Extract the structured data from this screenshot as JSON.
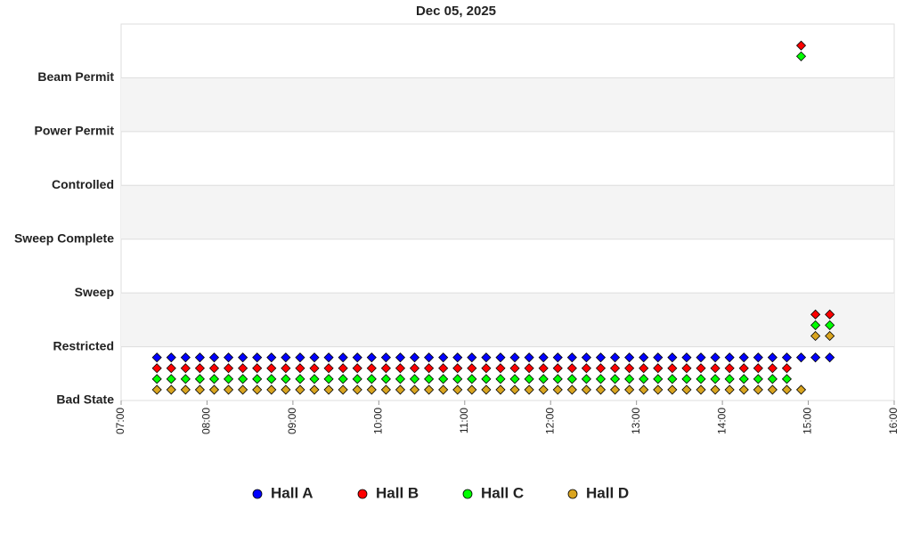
{
  "chart_data": {
    "type": "scatter",
    "title": "Dec 05, 2025",
    "x": [
      "07:25",
      "07:35",
      "07:45",
      "07:55",
      "08:05",
      "08:15",
      "08:25",
      "08:35",
      "08:45",
      "08:55",
      "09:05",
      "09:15",
      "09:25",
      "09:35",
      "09:45",
      "09:55",
      "10:05",
      "10:15",
      "10:25",
      "10:35",
      "10:45",
      "10:55",
      "11:05",
      "11:15",
      "11:25",
      "11:35",
      "11:45",
      "11:55",
      "12:05",
      "12:15",
      "12:25",
      "12:35",
      "12:45",
      "12:55",
      "13:05",
      "13:15",
      "13:25",
      "13:35",
      "13:45",
      "13:55",
      "14:05",
      "14:15",
      "14:25",
      "14:35",
      "14:45",
      "14:55",
      "15:05",
      "15:15"
    ],
    "series": [
      {
        "name": "Hall A",
        "color": "#0000ff",
        "values": [
          0.8,
          0.8,
          0.8,
          0.8,
          0.8,
          0.8,
          0.8,
          0.8,
          0.8,
          0.8,
          0.8,
          0.8,
          0.8,
          0.8,
          0.8,
          0.8,
          0.8,
          0.8,
          0.8,
          0.8,
          0.8,
          0.8,
          0.8,
          0.8,
          0.8,
          0.8,
          0.8,
          0.8,
          0.8,
          0.8,
          0.8,
          0.8,
          0.8,
          0.8,
          0.8,
          0.8,
          0.8,
          0.8,
          0.8,
          0.8,
          0.8,
          0.8,
          0.8,
          0.8,
          0.8,
          0.8,
          0.8,
          0.8
        ]
      },
      {
        "name": "Hall B",
        "color": "#ff0000",
        "values": [
          0.6,
          0.6,
          0.6,
          0.6,
          0.6,
          0.6,
          0.6,
          0.6,
          0.6,
          0.6,
          0.6,
          0.6,
          0.6,
          0.6,
          0.6,
          0.6,
          0.6,
          0.6,
          0.6,
          0.6,
          0.6,
          0.6,
          0.6,
          0.6,
          0.6,
          0.6,
          0.6,
          0.6,
          0.6,
          0.6,
          0.6,
          0.6,
          0.6,
          0.6,
          0.6,
          0.6,
          0.6,
          0.6,
          0.6,
          0.6,
          0.6,
          0.6,
          0.6,
          0.6,
          0.6,
          6.6,
          1.6,
          1.6
        ]
      },
      {
        "name": "Hall C",
        "color": "#00ff00",
        "values": [
          0.4,
          0.4,
          0.4,
          0.4,
          0.4,
          0.4,
          0.4,
          0.4,
          0.4,
          0.4,
          0.4,
          0.4,
          0.4,
          0.4,
          0.4,
          0.4,
          0.4,
          0.4,
          0.4,
          0.4,
          0.4,
          0.4,
          0.4,
          0.4,
          0.4,
          0.4,
          0.4,
          0.4,
          0.4,
          0.4,
          0.4,
          0.4,
          0.4,
          0.4,
          0.4,
          0.4,
          0.4,
          0.4,
          0.4,
          0.4,
          0.4,
          0.4,
          0.4,
          0.4,
          0.4,
          6.4,
          1.4,
          1.4
        ]
      },
      {
        "name": "Hall D",
        "color": "#daa520",
        "values": [
          0.2,
          0.2,
          0.2,
          0.2,
          0.2,
          0.2,
          0.2,
          0.2,
          0.2,
          0.2,
          0.2,
          0.2,
          0.2,
          0.2,
          0.2,
          0.2,
          0.2,
          0.2,
          0.2,
          0.2,
          0.2,
          0.2,
          0.2,
          0.2,
          0.2,
          0.2,
          0.2,
          0.2,
          0.2,
          0.2,
          0.2,
          0.2,
          0.2,
          0.2,
          0.2,
          0.2,
          0.2,
          0.2,
          0.2,
          0.2,
          0.2,
          0.2,
          0.2,
          0.2,
          0.2,
          0.2,
          1.2,
          1.2
        ]
      }
    ],
    "xlim": [
      "07:00",
      "16:00"
    ],
    "xticks": [
      "07:00",
      "08:00",
      "09:00",
      "10:00",
      "11:00",
      "12:00",
      "13:00",
      "14:00",
      "15:00",
      "16:00"
    ],
    "ylim": [
      0,
      7
    ],
    "yticks": [
      {
        "value": 0,
        "label": "Bad State"
      },
      {
        "value": 1,
        "label": "Restricted"
      },
      {
        "value": 2,
        "label": "Sweep"
      },
      {
        "value": 3,
        "label": "Sweep Complete"
      },
      {
        "value": 4,
        "label": "Controlled"
      },
      {
        "value": 5,
        "label": "Power Permit"
      },
      {
        "value": 6,
        "label": "Beam Permit"
      }
    ],
    "grid": true,
    "legend": "bottom"
  }
}
